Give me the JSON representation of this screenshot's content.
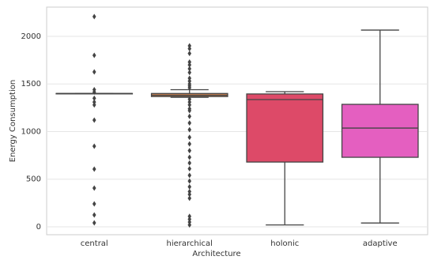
{
  "chart_data": {
    "type": "box",
    "xlabel": "Architecture",
    "ylabel": "Energy Consumption",
    "categories": [
      "central",
      "hierarchical",
      "holonic",
      "adaptive"
    ],
    "boxes": [
      {
        "color": "#5b7fb8",
        "whislo": 1400,
        "q1": 1400,
        "median": 1400,
        "q3": 1400,
        "whishi": 1400,
        "fliers": [
          2207,
          1801,
          1627,
          1440,
          1415,
          1350,
          1310,
          1280,
          1120,
          846,
          606,
          407,
          241,
          124,
          41
        ]
      },
      {
        "color": "#d2834f",
        "whislo": 1360,
        "q1": 1368,
        "median": 1382,
        "q3": 1400,
        "whishi": 1440,
        "fliers": [
          1900,
          1870,
          1820,
          1730,
          1700,
          1660,
          1620,
          1560,
          1530,
          1500,
          1480,
          1460,
          1340,
          1310,
          1280,
          1240,
          1220,
          1160,
          1090,
          1020,
          940,
          870,
          800,
          730,
          670,
          610,
          540,
          480,
          420,
          370,
          340,
          300,
          110,
          80,
          50,
          20
        ]
      },
      {
        "color": "#dd4a68",
        "whislo": 20,
        "q1": 680,
        "median": 1336,
        "q3": 1395,
        "whishi": 1419,
        "fliers": []
      },
      {
        "color": "#e45fc0",
        "whislo": 40,
        "q1": 730,
        "median": 1037,
        "q3": 1286,
        "whishi": 2066,
        "fliers": []
      }
    ],
    "ylim": [
      -83,
      2307
    ],
    "yticks": [
      0,
      500,
      1000,
      1500,
      2000
    ],
    "grid": true
  }
}
